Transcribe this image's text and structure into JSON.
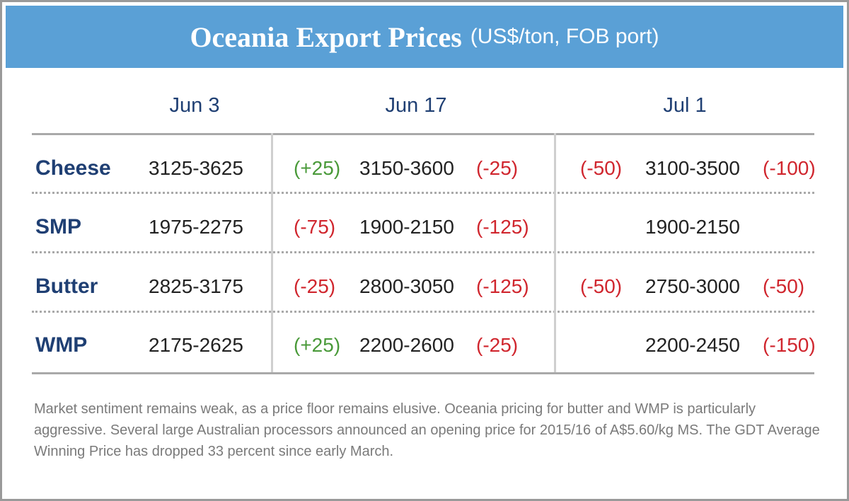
{
  "header": {
    "title": "Oceania Export Prices",
    "subtitle": "(US$/ton, FOB port)"
  },
  "table": {
    "columns": [
      "Jun 3",
      "Jun 17",
      "Jul 1"
    ],
    "rows": [
      {
        "product": "Cheese",
        "cells": [
          {
            "price": "3125-3625"
          },
          {
            "before": "(+25)",
            "price": "3150-3600",
            "after": "(-25)"
          },
          {
            "before": "(-50)",
            "price": "3100-3500",
            "after": "(-100)"
          }
        ]
      },
      {
        "product": "SMP",
        "cells": [
          {
            "price": "1975-2275"
          },
          {
            "before": "(-75)",
            "price": "1900-2150",
            "after": "(-125)"
          },
          {
            "price": "1900-2150"
          }
        ]
      },
      {
        "product": "Butter",
        "cells": [
          {
            "price": "2825-3175"
          },
          {
            "before": "(-25)",
            "price": "2800-3050",
            "after": "(-125)"
          },
          {
            "before": "(-50)",
            "price": "2750-3000",
            "after": "(-50)"
          }
        ]
      },
      {
        "product": "WMP",
        "cells": [
          {
            "price": "2175-2625"
          },
          {
            "before": "(+25)",
            "price": "2200-2600",
            "after": "(-25)"
          },
          {
            "price": "2200-2450",
            "after": "(-150)"
          }
        ]
      }
    ]
  },
  "note": "Market sentiment remains weak, as a price floor remains elusive. Oceania pricing for butter and WMP is particularly aggressive. Several large Australian processors announced an opening price for 2015/16 of A$5.60/kg MS. The GDT Average Winning Price has dropped 33 percent since early March."
}
